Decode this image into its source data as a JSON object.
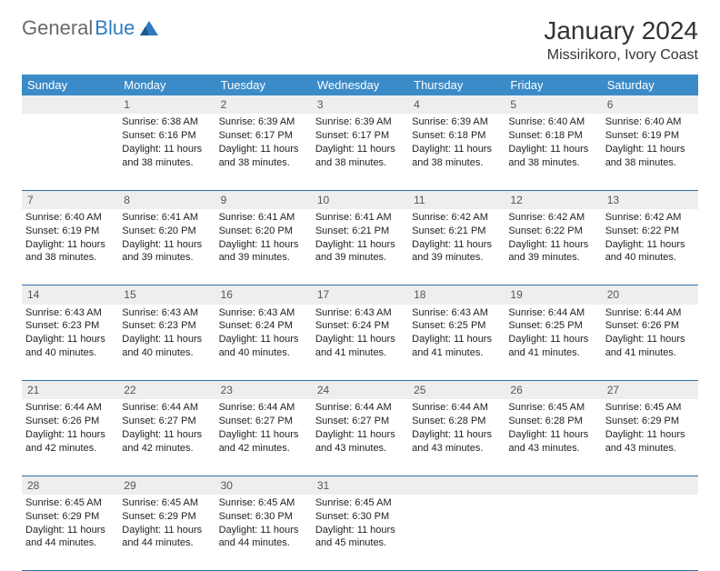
{
  "brand": {
    "part1": "General",
    "part2": "Blue"
  },
  "title": {
    "month": "January 2024",
    "location": "Missirikoro, Ivory Coast"
  },
  "colors": {
    "header_bg": "#3b8bc8",
    "header_text": "#ffffff",
    "daynum_bg": "#eeeeee",
    "row_border": "#2f6fa5",
    "logo_gray": "#6a6a6a",
    "logo_blue": "#2f7bbf"
  },
  "weekdays": [
    "Sunday",
    "Monday",
    "Tuesday",
    "Wednesday",
    "Thursday",
    "Friday",
    "Saturday"
  ],
  "weeks": [
    {
      "nums": [
        "",
        "1",
        "2",
        "3",
        "4",
        "5",
        "6"
      ],
      "cells": [
        null,
        {
          "sunrise": "6:38 AM",
          "sunset": "6:16 PM",
          "dl1": "Daylight: 11 hours",
          "dl2": "and 38 minutes."
        },
        {
          "sunrise": "6:39 AM",
          "sunset": "6:17 PM",
          "dl1": "Daylight: 11 hours",
          "dl2": "and 38 minutes."
        },
        {
          "sunrise": "6:39 AM",
          "sunset": "6:17 PM",
          "dl1": "Daylight: 11 hours",
          "dl2": "and 38 minutes."
        },
        {
          "sunrise": "6:39 AM",
          "sunset": "6:18 PM",
          "dl1": "Daylight: 11 hours",
          "dl2": "and 38 minutes."
        },
        {
          "sunrise": "6:40 AM",
          "sunset": "6:18 PM",
          "dl1": "Daylight: 11 hours",
          "dl2": "and 38 minutes."
        },
        {
          "sunrise": "6:40 AM",
          "sunset": "6:19 PM",
          "dl1": "Daylight: 11 hours",
          "dl2": "and 38 minutes."
        }
      ]
    },
    {
      "nums": [
        "7",
        "8",
        "9",
        "10",
        "11",
        "12",
        "13"
      ],
      "cells": [
        {
          "sunrise": "6:40 AM",
          "sunset": "6:19 PM",
          "dl1": "Daylight: 11 hours",
          "dl2": "and 38 minutes."
        },
        {
          "sunrise": "6:41 AM",
          "sunset": "6:20 PM",
          "dl1": "Daylight: 11 hours",
          "dl2": "and 39 minutes."
        },
        {
          "sunrise": "6:41 AM",
          "sunset": "6:20 PM",
          "dl1": "Daylight: 11 hours",
          "dl2": "and 39 minutes."
        },
        {
          "sunrise": "6:41 AM",
          "sunset": "6:21 PM",
          "dl1": "Daylight: 11 hours",
          "dl2": "and 39 minutes."
        },
        {
          "sunrise": "6:42 AM",
          "sunset": "6:21 PM",
          "dl1": "Daylight: 11 hours",
          "dl2": "and 39 minutes."
        },
        {
          "sunrise": "6:42 AM",
          "sunset": "6:22 PM",
          "dl1": "Daylight: 11 hours",
          "dl2": "and 39 minutes."
        },
        {
          "sunrise": "6:42 AM",
          "sunset": "6:22 PM",
          "dl1": "Daylight: 11 hours",
          "dl2": "and 40 minutes."
        }
      ]
    },
    {
      "nums": [
        "14",
        "15",
        "16",
        "17",
        "18",
        "19",
        "20"
      ],
      "cells": [
        {
          "sunrise": "6:43 AM",
          "sunset": "6:23 PM",
          "dl1": "Daylight: 11 hours",
          "dl2": "and 40 minutes."
        },
        {
          "sunrise": "6:43 AM",
          "sunset": "6:23 PM",
          "dl1": "Daylight: 11 hours",
          "dl2": "and 40 minutes."
        },
        {
          "sunrise": "6:43 AM",
          "sunset": "6:24 PM",
          "dl1": "Daylight: 11 hours",
          "dl2": "and 40 minutes."
        },
        {
          "sunrise": "6:43 AM",
          "sunset": "6:24 PM",
          "dl1": "Daylight: 11 hours",
          "dl2": "and 41 minutes."
        },
        {
          "sunrise": "6:43 AM",
          "sunset": "6:25 PM",
          "dl1": "Daylight: 11 hours",
          "dl2": "and 41 minutes."
        },
        {
          "sunrise": "6:44 AM",
          "sunset": "6:25 PM",
          "dl1": "Daylight: 11 hours",
          "dl2": "and 41 minutes."
        },
        {
          "sunrise": "6:44 AM",
          "sunset": "6:26 PM",
          "dl1": "Daylight: 11 hours",
          "dl2": "and 41 minutes."
        }
      ]
    },
    {
      "nums": [
        "21",
        "22",
        "23",
        "24",
        "25",
        "26",
        "27"
      ],
      "cells": [
        {
          "sunrise": "6:44 AM",
          "sunset": "6:26 PM",
          "dl1": "Daylight: 11 hours",
          "dl2": "and 42 minutes."
        },
        {
          "sunrise": "6:44 AM",
          "sunset": "6:27 PM",
          "dl1": "Daylight: 11 hours",
          "dl2": "and 42 minutes."
        },
        {
          "sunrise": "6:44 AM",
          "sunset": "6:27 PM",
          "dl1": "Daylight: 11 hours",
          "dl2": "and 42 minutes."
        },
        {
          "sunrise": "6:44 AM",
          "sunset": "6:27 PM",
          "dl1": "Daylight: 11 hours",
          "dl2": "and 43 minutes."
        },
        {
          "sunrise": "6:44 AM",
          "sunset": "6:28 PM",
          "dl1": "Daylight: 11 hours",
          "dl2": "and 43 minutes."
        },
        {
          "sunrise": "6:45 AM",
          "sunset": "6:28 PM",
          "dl1": "Daylight: 11 hours",
          "dl2": "and 43 minutes."
        },
        {
          "sunrise": "6:45 AM",
          "sunset": "6:29 PM",
          "dl1": "Daylight: 11 hours",
          "dl2": "and 43 minutes."
        }
      ]
    },
    {
      "nums": [
        "28",
        "29",
        "30",
        "31",
        "",
        "",
        ""
      ],
      "cells": [
        {
          "sunrise": "6:45 AM",
          "sunset": "6:29 PM",
          "dl1": "Daylight: 11 hours",
          "dl2": "and 44 minutes."
        },
        {
          "sunrise": "6:45 AM",
          "sunset": "6:29 PM",
          "dl1": "Daylight: 11 hours",
          "dl2": "and 44 minutes."
        },
        {
          "sunrise": "6:45 AM",
          "sunset": "6:30 PM",
          "dl1": "Daylight: 11 hours",
          "dl2": "and 44 minutes."
        },
        {
          "sunrise": "6:45 AM",
          "sunset": "6:30 PM",
          "dl1": "Daylight: 11 hours",
          "dl2": "and 45 minutes."
        },
        null,
        null,
        null
      ]
    }
  ],
  "labels": {
    "sunrise": "Sunrise: ",
    "sunset": "Sunset: "
  }
}
